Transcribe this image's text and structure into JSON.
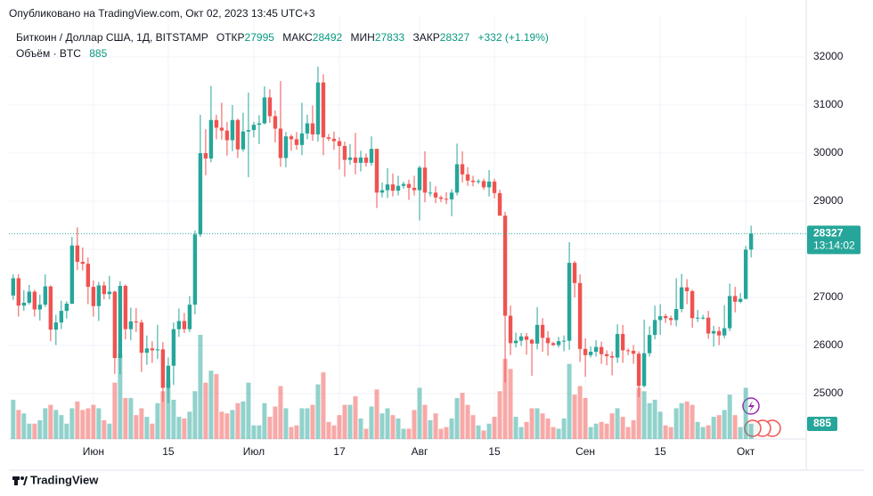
{
  "chart_data": {
    "type": "candlestick",
    "published": "Опубликовано на TradingView.com, Окт 02, 2023 13:45 UTC+3",
    "symbol": "Биткоин / Доллар США, 1Д, BITSTAMP",
    "ohlc_labels": [
      "ОТКР",
      "МАКС",
      "МИН",
      "ЗАКР"
    ],
    "change_label": "+332 (+1.19%)",
    "volume_label": "Объём · BTC",
    "countdown": "13:14:02",
    "brand": "TradingView",
    "up_color": "#26a69a",
    "down_color": "#ef5350",
    "grid": true,
    "ylim": [
      24056,
      32667
    ],
    "yticks": [
      25000,
      26000,
      27000,
      28000,
      29000,
      30000,
      31000,
      32000
    ],
    "xlim": [
      -0.8,
      148.3
    ],
    "xticks": [
      {
        "value": 15,
        "label": "Июн"
      },
      {
        "value": 29,
        "label": "15"
      },
      {
        "value": 45,
        "label": "Июл"
      },
      {
        "value": 61,
        "label": "17"
      },
      {
        "value": 76,
        "label": "Авг"
      },
      {
        "value": 90,
        "label": "15"
      },
      {
        "value": 107,
        "label": "Сен"
      },
      {
        "value": 121,
        "label": "15"
      },
      {
        "value": 137,
        "label": "Окт"
      }
    ],
    "open": [
      27040,
      27400,
      26830,
      26890,
      27120,
      26750,
      26850,
      27230,
      26330,
      26480,
      26720,
      26870,
      28080,
      27740,
      27700,
      27220,
      26820,
      27250,
      27070,
      27120,
      25740,
      27240,
      26340,
      26500,
      26480,
      25850,
      25940,
      25900,
      25920,
      25120,
      25580,
      26340,
      26510,
      26340,
      26850,
      28310,
      30000,
      29890,
      30690,
      30530,
      30470,
      30270,
      30690,
      30080,
      30450,
      30480,
      30590,
      30620,
      31160,
      30770,
      30510,
      29900,
      30350,
      30290,
      30170,
      30410,
      30620,
      30390,
      31470,
      30330,
      30300,
      30250,
      30150,
      29860,
      29910,
      29800,
      29910,
      29800,
      30090,
      29180,
      29230,
      29350,
      29220,
      29320,
      29360,
      29280,
      29230,
      29700,
      29180,
      29180,
      29080,
      29050,
      29040,
      29180,
      29770,
      29560,
      29430,
      29400,
      29420,
      29290,
      29410,
      29170,
      28700,
      26620,
      26050,
      26100,
      26190,
      26120,
      26040,
      26430,
      26160,
      26050,
      26010,
      26090,
      26100,
      27720,
      27300,
      25930,
      25800,
      25870,
      25970,
      25820,
      25780,
      25750,
      26240,
      25900,
      25890,
      25830,
      25160,
      25840,
      26220,
      26530,
      26610,
      26570,
      26530,
      26760,
      27210,
      27130,
      26570,
      26580,
      26580,
      26250,
      26300,
      26210,
      26360,
      27030,
      26910,
      26970,
      27995
    ],
    "high": [
      27480,
      27480,
      27150,
      27260,
      27160,
      27060,
      27480,
      27250,
      26640,
      26930,
      26920,
      28260,
      28460,
      28040,
      27830,
      27350,
      27320,
      27330,
      27450,
      27140,
      27340,
      27270,
      26790,
      26780,
      26540,
      26210,
      26090,
      26430,
      26070,
      25750,
      26480,
      26770,
      26680,
      27030,
      28390,
      30800,
      30500,
      31400,
      30800,
      31050,
      30650,
      31000,
      30720,
      30840,
      31260,
      30650,
      30790,
      31390,
      31330,
      30890,
      31500,
      30440,
      30390,
      30440,
      31050,
      30800,
      30990,
      31800,
      31640,
      30400,
      30450,
      30330,
      30240,
      30190,
      30420,
      30050,
      29990,
      30350,
      30090,
      29390,
      29690,
      29580,
      29530,
      29410,
      29450,
      29530,
      29740,
      30040,
      29410,
      29310,
      29120,
      29190,
      29250,
      30200,
      30040,
      29710,
      29530,
      29460,
      29470,
      29650,
      29470,
      29240,
      28780,
      26830,
      26270,
      26260,
      26260,
      26140,
      26800,
      26570,
      26300,
      26080,
      26180,
      26210,
      28150,
      27760,
      27480,
      26150,
      25980,
      26110,
      26080,
      25900,
      25880,
      26440,
      26430,
      25940,
      26010,
      25880,
      26540,
      26400,
      26830,
      26860,
      26660,
      26620,
      27400,
      27490,
      27380,
      27160,
      26740,
      26640,
      26720,
      26410,
      26390,
      26840,
      27290,
      27220,
      27090,
      28070,
      28492
    ],
    "low": [
      26950,
      26600,
      26720,
      26850,
      26600,
      26520,
      26800,
      26090,
      26010,
      26340,
      26560,
      26860,
      27570,
      27560,
      26860,
      26600,
      26510,
      26960,
      26960,
      25410,
      25400,
      26130,
      26110,
      26280,
      25450,
      25600,
      25640,
      25720,
      24830,
      24800,
      25180,
      26180,
      26260,
      26280,
      26650,
      28260,
      29540,
      29810,
      30290,
      30280,
      29950,
      30040,
      29900,
      30030,
      29500,
      30330,
      30190,
      30600,
      30630,
      30220,
      29720,
      29710,
      30050,
      30070,
      29960,
      30290,
      30260,
      30240,
      29960,
      30250,
      30070,
      29660,
      29510,
      29760,
      29560,
      29620,
      29720,
      29740,
      28860,
      29080,
      29070,
      29100,
      29120,
      29260,
      29030,
      29120,
      28600,
      28980,
      29100,
      28960,
      28980,
      28940,
      28690,
      29120,
      29390,
      29320,
      29310,
      29360,
      29240,
      29100,
      29060,
      28700,
      25230,
      25800,
      25960,
      25990,
      25810,
      25370,
      25920,
      25870,
      25790,
      25990,
      25960,
      25880,
      25910,
      27000,
      25660,
      25350,
      25750,
      25770,
      25620,
      25590,
      25380,
      25640,
      25640,
      25800,
      25620,
      24930,
      25130,
      25770,
      26130,
      26220,
      26470,
      26420,
      26400,
      26690,
      26860,
      26370,
      26490,
      26540,
      26140,
      25980,
      26010,
      26150,
      26300,
      26690,
      26880,
      26960,
      27833
    ],
    "close": [
      27400,
      26830,
      26890,
      27120,
      26750,
      26850,
      27230,
      26330,
      26480,
      26720,
      26870,
      28080,
      27740,
      27700,
      27220,
      26820,
      27250,
      27070,
      27120,
      25740,
      27240,
      26340,
      26500,
      26480,
      25850,
      25940,
      25900,
      25920,
      25120,
      25580,
      26340,
      26510,
      26340,
      26850,
      28310,
      30000,
      29890,
      30690,
      30530,
      30470,
      30270,
      30690,
      30080,
      30450,
      30480,
      30590,
      30620,
      31160,
      30770,
      30510,
      29900,
      30350,
      30290,
      30170,
      30410,
      30620,
      30390,
      31470,
      30330,
      30300,
      30250,
      30150,
      29860,
      29910,
      29800,
      29910,
      29800,
      30090,
      29180,
      29230,
      29350,
      29220,
      29320,
      29360,
      29280,
      29230,
      29700,
      29180,
      29180,
      29080,
      29050,
      29040,
      29180,
      29770,
      29560,
      29430,
      29400,
      29420,
      29290,
      29410,
      29170,
      28700,
      26620,
      26050,
      26100,
      26190,
      26120,
      26040,
      26430,
      26160,
      26050,
      26010,
      26090,
      26100,
      27720,
      27300,
      25930,
      25800,
      25870,
      25970,
      25820,
      25780,
      25750,
      26240,
      25900,
      25890,
      25830,
      25160,
      25840,
      26220,
      26530,
      26610,
      26570,
      26530,
      26760,
      27210,
      27130,
      26570,
      26580,
      26580,
      26250,
      26300,
      26210,
      26360,
      27030,
      26910,
      26970,
      27995,
      28327
    ],
    "volume": [
      2300,
      1700,
      1500,
      900,
      900,
      1100,
      1800,
      2000,
      1700,
      1400,
      900,
      1800,
      2200,
      1700,
      1800,
      2000,
      1800,
      1100,
      900,
      3300,
      5000,
      2400,
      2400,
      1400,
      1800,
      1300,
      900,
      2100,
      2800,
      3400,
      2300,
      1300,
      1200,
      1600,
      2800,
      6100,
      3300,
      4000,
      3800,
      1600,
      1500,
      1700,
      2100,
      2200,
      3300,
      800,
      800,
      2100,
      1300,
      1900,
      3100,
      1800,
      700,
      800,
      1800,
      1800,
      2000,
      3200,
      3900,
      1000,
      800,
      1400,
      2000,
      2000,
      2500,
      1200,
      600,
      1900,
      2900,
      1500,
      1800,
      1400,
      1200,
      600,
      600,
      1700,
      3000,
      2000,
      1100,
      1500,
      600,
      700,
      1200,
      2400,
      2700,
      2000,
      1400,
      800,
      500,
      900,
      1300,
      2800,
      4700,
      4100,
      1300,
      700,
      1000,
      1800,
      1800,
      1500,
      1200,
      700,
      600,
      1200,
      4400,
      2600,
      3100,
      2400,
      700,
      900,
      1000,
      900,
      1500,
      1800,
      1300,
      700,
      1100,
      3000,
      2800,
      2100,
      2300,
      1600,
      800,
      700,
      1800,
      2100,
      2200,
      2000,
      1000,
      700,
      800,
      1300,
      1400,
      1700,
      2600,
      1400,
      700,
      3000,
      885
    ]
  }
}
